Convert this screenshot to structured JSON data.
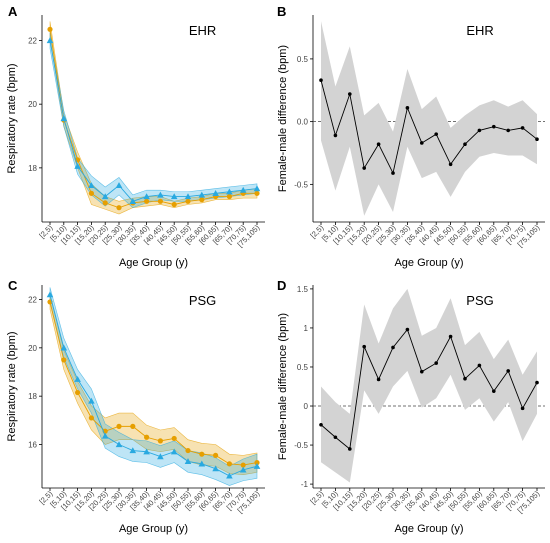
{
  "chart_data": [
    {
      "panel": "A",
      "title": "EHR",
      "type": "line",
      "xlabel": "Age Group (y)",
      "ylabel": "Respiratory rate (bpm)",
      "categories": [
        "[2,5)",
        "[5,10)",
        "[10,15)",
        "[15,20)",
        "[20,25)",
        "[25,30)",
        "[30,35)",
        "[35,40)",
        "[40,45)",
        "[45,50)",
        "[50,55)",
        "[55,60)",
        "[60,65)",
        "[65,70)",
        "[70,75)",
        "[75,105)"
      ],
      "ylim": [
        16.3,
        22.8
      ],
      "yticks": [
        18,
        20,
        22
      ],
      "series": [
        {
          "color": "#E69F00",
          "marker": "circle",
          "values": [
            22.35,
            19.5,
            18.25,
            17.2,
            16.9,
            16.75,
            16.9,
            16.95,
            16.95,
            16.85,
            16.95,
            17.0,
            17.1,
            17.1,
            17.2,
            17.2
          ],
          "lower": [
            22.1,
            19.3,
            18.0,
            16.85,
            16.7,
            16.55,
            16.75,
            16.8,
            16.85,
            16.75,
            16.85,
            16.9,
            17.0,
            17.0,
            17.05,
            17.05
          ],
          "upper": [
            22.6,
            19.7,
            18.5,
            17.5,
            17.1,
            16.95,
            17.05,
            17.1,
            17.1,
            16.95,
            17.05,
            17.1,
            17.2,
            17.2,
            17.3,
            17.35
          ]
        },
        {
          "color": "#29A9E0",
          "marker": "triangle",
          "values": [
            22.0,
            19.55,
            18.05,
            17.45,
            17.1,
            17.45,
            16.95,
            17.1,
            17.15,
            17.1,
            17.1,
            17.15,
            17.2,
            17.25,
            17.3,
            17.35
          ],
          "lower": [
            21.75,
            19.3,
            17.8,
            17.15,
            16.8,
            17.15,
            16.75,
            16.9,
            17.0,
            16.95,
            16.95,
            17.0,
            17.05,
            17.1,
            17.15,
            17.2
          ],
          "upper": [
            22.25,
            19.8,
            18.3,
            17.75,
            17.4,
            17.7,
            17.15,
            17.3,
            17.3,
            17.25,
            17.25,
            17.3,
            17.35,
            17.4,
            17.45,
            17.5
          ]
        }
      ]
    },
    {
      "panel": "B",
      "title": "EHR",
      "type": "line",
      "xlabel": "Age Group (y)",
      "ylabel": "Female-male difference (bpm)",
      "categories": [
        "[2,5)",
        "[5,10)",
        "[10,15)",
        "[15,20)",
        "[20,25)",
        "[25,30)",
        "[30,35)",
        "[35,40)",
        "[40,45)",
        "[45,50)",
        "[50,55)",
        "[55,60)",
        "[60,65)",
        "[65,70)",
        "[70,75)",
        "[75,105)"
      ],
      "ylim": [
        -0.8,
        0.85
      ],
      "yticks": [
        -0.5,
        0.0,
        0.5
      ],
      "reference_line": 0,
      "series": [
        {
          "color": "#000000",
          "marker": "circle",
          "values": [
            0.33,
            -0.11,
            0.22,
            -0.37,
            -0.18,
            -0.41,
            0.11,
            -0.17,
            -0.1,
            -0.34,
            -0.18,
            -0.07,
            -0.04,
            -0.07,
            -0.05,
            -0.14
          ],
          "lower": [
            -0.15,
            -0.55,
            -0.2,
            -0.75,
            -0.5,
            -0.72,
            -0.2,
            -0.45,
            -0.4,
            -0.6,
            -0.4,
            -0.28,
            -0.25,
            -0.27,
            -0.27,
            -0.34
          ],
          "upper": [
            0.8,
            0.28,
            0.6,
            0.05,
            0.15,
            -0.08,
            0.42,
            0.1,
            0.2,
            -0.05,
            0.05,
            0.13,
            0.17,
            0.12,
            0.17,
            0.06
          ]
        }
      ]
    },
    {
      "panel": "C",
      "title": "PSG",
      "type": "line",
      "xlabel": "Age Group (y)",
      "ylabel": "Respiratory rate (bpm)",
      "categories": [
        "[2,5)",
        "[5,10)",
        "[10,15)",
        "[15,20)",
        "[20,25)",
        "[25,30)",
        "[30,35)",
        "[35,40)",
        "[40,45)",
        "[45,50)",
        "[50,55)",
        "[55,60)",
        "[60,65)",
        "[65,70)",
        "[70,75)",
        "[75,105)"
      ],
      "ylim": [
        14.2,
        22.6
      ],
      "yticks": [
        16,
        18,
        20,
        22
      ],
      "series": [
        {
          "color": "#E69F00",
          "marker": "circle",
          "values": [
            21.9,
            19.5,
            18.15,
            17.1,
            16.55,
            16.75,
            16.75,
            16.3,
            16.15,
            16.25,
            15.75,
            15.6,
            15.55,
            15.2,
            15.15,
            15.25
          ],
          "lower": [
            21.6,
            19.1,
            17.7,
            16.6,
            16.0,
            16.2,
            16.2,
            15.8,
            15.7,
            15.8,
            15.3,
            15.15,
            15.1,
            14.8,
            14.75,
            14.85
          ],
          "upper": [
            22.2,
            19.9,
            18.6,
            17.6,
            17.1,
            17.3,
            17.3,
            16.8,
            16.6,
            16.7,
            16.2,
            16.05,
            16.0,
            15.6,
            15.55,
            15.65
          ]
        },
        {
          "color": "#29A9E0",
          "marker": "triangle",
          "values": [
            22.2,
            20.0,
            18.7,
            17.8,
            16.35,
            16.0,
            15.75,
            15.7,
            15.5,
            15.7,
            15.3,
            15.2,
            15.0,
            14.7,
            14.95,
            15.1
          ],
          "lower": [
            21.9,
            19.6,
            18.3,
            17.3,
            15.85,
            15.5,
            15.3,
            15.25,
            15.05,
            15.25,
            14.85,
            14.75,
            14.55,
            14.3,
            14.5,
            14.6
          ],
          "upper": [
            22.5,
            20.4,
            19.1,
            18.3,
            16.85,
            16.5,
            16.2,
            16.15,
            15.95,
            16.15,
            15.75,
            15.65,
            15.45,
            15.1,
            15.4,
            15.6
          ]
        }
      ]
    },
    {
      "panel": "D",
      "title": "PSG",
      "type": "line",
      "xlabel": "Age Group (y)",
      "ylabel": "Female-male difference (bpm)",
      "categories": [
        "[2,5)",
        "[5,10)",
        "[10,15)",
        "[15,20)",
        "[20,25)",
        "[25,30)",
        "[30,35)",
        "[35,40)",
        "[40,45)",
        "[45,50)",
        "[50,55)",
        "[55,60)",
        "[60,65)",
        "[65,70)",
        "[70,75)",
        "[75,105)"
      ],
      "ylim": [
        -1.05,
        1.55
      ],
      "yticks": [
        -1,
        -0.5,
        0,
        0.5,
        1,
        1.5
      ],
      "reference_line": 0,
      "series": [
        {
          "color": "#000000",
          "marker": "circle",
          "values": [
            -0.24,
            -0.4,
            -0.55,
            0.76,
            0.34,
            0.75,
            0.98,
            0.44,
            0.55,
            0.89,
            0.35,
            0.52,
            0.19,
            0.45,
            -0.03,
            0.3
          ],
          "lower": [
            -0.72,
            -0.85,
            -0.98,
            0.2,
            -0.1,
            0.25,
            0.45,
            -0.02,
            0.1,
            0.4,
            -0.05,
            0.1,
            -0.2,
            0.05,
            -0.45,
            -0.1
          ],
          "upper": [
            0.25,
            0.05,
            -0.1,
            1.3,
            0.8,
            1.25,
            1.5,
            0.9,
            1.0,
            1.38,
            0.78,
            0.95,
            0.6,
            0.85,
            0.4,
            0.7
          ]
        }
      ]
    }
  ]
}
